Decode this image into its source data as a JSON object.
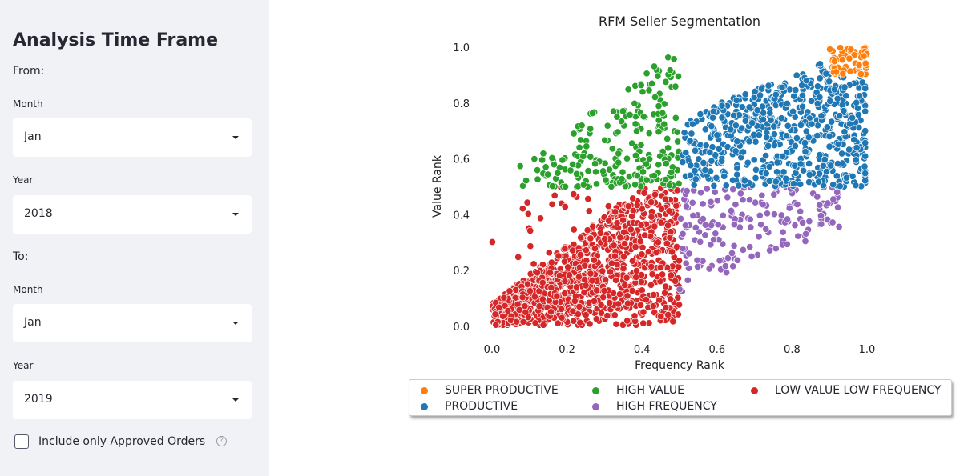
{
  "sidebar": {
    "title": "Analysis Time Frame",
    "from_label": "From:",
    "to_label": "To:",
    "from_month": {
      "label": "Month",
      "value": "Jan"
    },
    "from_year": {
      "label": "Year",
      "value": "2018"
    },
    "to_month": {
      "label": "Month",
      "value": "Jan"
    },
    "to_year": {
      "label": "Year",
      "value": "2019"
    },
    "approved_only": {
      "label": "Include only Approved Orders",
      "checked": false,
      "help_icon": "help-circle-icon"
    }
  },
  "chart_data": {
    "type": "scatter",
    "title": "RFM Seller Segmentation",
    "xlabel": "Frequency Rank",
    "ylabel": "Value Rank",
    "xlim": [
      -0.05,
      1.05
    ],
    "ylim": [
      -0.02,
      1.02
    ],
    "xticks": [
      "0.0",
      "0.2",
      "0.4",
      "0.6",
      "0.8",
      "1.0"
    ],
    "yticks": [
      "0.0",
      "0.2",
      "0.4",
      "0.6",
      "0.8",
      "1.0"
    ],
    "grid": false,
    "legend_position": "bottom",
    "series": [
      {
        "name": "SUPER PRODUCTIVE",
        "color": "#ff7f0e",
        "x_range": [
          0.9,
          1.0
        ],
        "y_range": [
          0.9,
          1.0
        ],
        "approx_count": 60
      },
      {
        "name": "PRODUCTIVE",
        "color": "#1f77b4",
        "x_range": [
          0.5,
          1.0
        ],
        "y_range": [
          0.5,
          1.0
        ],
        "approx_count": 650
      },
      {
        "name": "HIGH VALUE",
        "color": "#2ca02c",
        "x_range": [
          0.0,
          0.5
        ],
        "y_range": [
          0.5,
          0.97
        ],
        "approx_count": 220
      },
      {
        "name": "HIGH FREQUENCY",
        "color": "#9467bd",
        "x_range": [
          0.5,
          0.93
        ],
        "y_range": [
          0.1,
          0.5
        ],
        "approx_count": 170
      },
      {
        "name": "LOW VALUE LOW FREQUENCY",
        "color": "#d62728",
        "x_range": [
          0.0,
          0.5
        ],
        "y_range": [
          0.0,
          0.5
        ],
        "approx_count": 1100
      }
    ]
  }
}
